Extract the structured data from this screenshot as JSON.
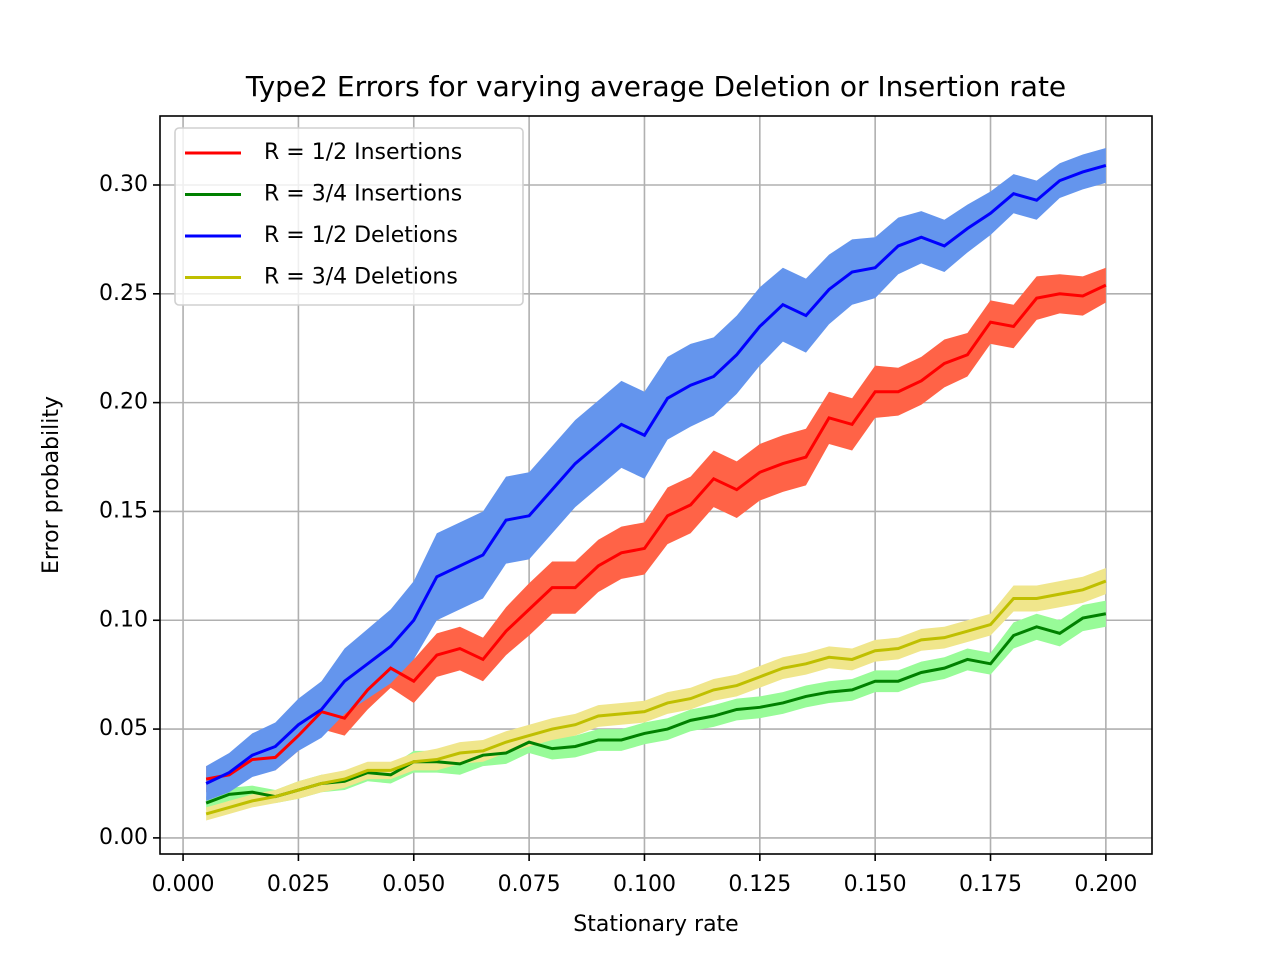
{
  "chart_data": {
    "type": "line_band",
    "title": "Type2 Errors for varying average Deletion or Insertion rate",
    "xlabel": "Stationary rate",
    "ylabel": "Error probability",
    "x": [
      0.005,
      0.01,
      0.015,
      0.02,
      0.025,
      0.03,
      0.035,
      0.04,
      0.045,
      0.05,
      0.055,
      0.06,
      0.065,
      0.07,
      0.075,
      0.08,
      0.085,
      0.09,
      0.095,
      0.1,
      0.105,
      0.11,
      0.115,
      0.12,
      0.125,
      0.13,
      0.135,
      0.14,
      0.145,
      0.15,
      0.155,
      0.16,
      0.165,
      0.17,
      0.175,
      0.18,
      0.185,
      0.19,
      0.195,
      0.2
    ],
    "series": [
      {
        "name": "R = 1/2 Insertions",
        "color": "#ff0000",
        "band_color": "#ff6347",
        "values": [
          0.027,
          0.029,
          0.036,
          0.037,
          0.047,
          0.058,
          0.055,
          0.068,
          0.078,
          0.072,
          0.084,
          0.087,
          0.082,
          0.095,
          0.105,
          0.115,
          0.115,
          0.125,
          0.131,
          0.133,
          0.148,
          0.153,
          0.165,
          0.16,
          0.168,
          0.172,
          0.175,
          0.193,
          0.19,
          0.205,
          0.205,
          0.21,
          0.218,
          0.222,
          0.237,
          0.235,
          0.248,
          0.25,
          0.249,
          0.254
        ],
        "errors": [
          0.006,
          0.005,
          0.006,
          0.006,
          0.007,
          0.008,
          0.008,
          0.009,
          0.009,
          0.01,
          0.01,
          0.01,
          0.01,
          0.011,
          0.012,
          0.012,
          0.012,
          0.012,
          0.012,
          0.012,
          0.013,
          0.013,
          0.013,
          0.013,
          0.013,
          0.013,
          0.013,
          0.012,
          0.012,
          0.012,
          0.011,
          0.011,
          0.011,
          0.01,
          0.01,
          0.01,
          0.01,
          0.009,
          0.009,
          0.008
        ]
      },
      {
        "name": "R = 3/4 Insertions",
        "color": "#008000",
        "band_color": "#98fb98",
        "values": [
          0.016,
          0.02,
          0.021,
          0.019,
          0.022,
          0.025,
          0.026,
          0.03,
          0.029,
          0.035,
          0.035,
          0.034,
          0.038,
          0.039,
          0.044,
          0.041,
          0.042,
          0.045,
          0.045,
          0.048,
          0.05,
          0.054,
          0.056,
          0.059,
          0.06,
          0.062,
          0.065,
          0.067,
          0.068,
          0.072,
          0.072,
          0.076,
          0.078,
          0.082,
          0.08,
          0.093,
          0.097,
          0.094,
          0.101,
          0.103
        ],
        "errors": [
          0.003,
          0.003,
          0.003,
          0.003,
          0.004,
          0.004,
          0.004,
          0.004,
          0.004,
          0.005,
          0.005,
          0.005,
          0.005,
          0.005,
          0.005,
          0.005,
          0.005,
          0.005,
          0.005,
          0.005,
          0.005,
          0.005,
          0.005,
          0.005,
          0.005,
          0.005,
          0.005,
          0.005,
          0.005,
          0.005,
          0.005,
          0.005,
          0.005,
          0.005,
          0.005,
          0.006,
          0.006,
          0.006,
          0.006,
          0.006
        ]
      },
      {
        "name": "R = 1/2 Deletions",
        "color": "#0000ff",
        "band_color": "#6495ed",
        "values": [
          0.025,
          0.03,
          0.038,
          0.042,
          0.052,
          0.059,
          0.072,
          0.08,
          0.088,
          0.1,
          0.12,
          0.125,
          0.13,
          0.146,
          0.148,
          0.16,
          0.172,
          0.181,
          0.19,
          0.185,
          0.202,
          0.208,
          0.212,
          0.222,
          0.235,
          0.245,
          0.24,
          0.252,
          0.26,
          0.262,
          0.272,
          0.276,
          0.272,
          0.28,
          0.287,
          0.296,
          0.293,
          0.302,
          0.306,
          0.309
        ],
        "errors": [
          0.008,
          0.009,
          0.01,
          0.011,
          0.012,
          0.013,
          0.015,
          0.016,
          0.017,
          0.018,
          0.02,
          0.02,
          0.02,
          0.02,
          0.02,
          0.02,
          0.02,
          0.02,
          0.02,
          0.02,
          0.019,
          0.019,
          0.018,
          0.018,
          0.018,
          0.017,
          0.017,
          0.016,
          0.015,
          0.014,
          0.013,
          0.012,
          0.012,
          0.011,
          0.01,
          0.009,
          0.009,
          0.008,
          0.008,
          0.008
        ]
      },
      {
        "name": "R = 3/4 Deletions",
        "color": "#bfbf00",
        "band_color": "#f0e68c",
        "values": [
          0.011,
          0.014,
          0.017,
          0.019,
          0.022,
          0.025,
          0.027,
          0.031,
          0.031,
          0.035,
          0.036,
          0.039,
          0.04,
          0.044,
          0.047,
          0.05,
          0.052,
          0.056,
          0.057,
          0.058,
          0.062,
          0.064,
          0.068,
          0.07,
          0.074,
          0.078,
          0.08,
          0.083,
          0.082,
          0.086,
          0.087,
          0.091,
          0.092,
          0.095,
          0.098,
          0.11,
          0.11,
          0.112,
          0.114,
          0.118
        ],
        "errors": [
          0.003,
          0.003,
          0.003,
          0.003,
          0.004,
          0.004,
          0.004,
          0.004,
          0.004,
          0.004,
          0.005,
          0.005,
          0.005,
          0.005,
          0.005,
          0.005,
          0.005,
          0.005,
          0.005,
          0.005,
          0.005,
          0.005,
          0.005,
          0.005,
          0.005,
          0.005,
          0.005,
          0.005,
          0.005,
          0.005,
          0.005,
          0.005,
          0.005,
          0.005,
          0.005,
          0.006,
          0.006,
          0.006,
          0.006,
          0.006
        ]
      }
    ],
    "xlim": [
      -0.005,
      0.21
    ],
    "ylim": [
      -0.0074,
      0.3317
    ],
    "xticks": [
      {
        "value": 0,
        "label": "0.000"
      },
      {
        "value": 0.025,
        "label": "0.025"
      },
      {
        "value": 0.05,
        "label": "0.050"
      },
      {
        "value": 0.075,
        "label": "0.075"
      },
      {
        "value": 0.1,
        "label": "0.100"
      },
      {
        "value": 0.125,
        "label": "0.125"
      },
      {
        "value": 0.15,
        "label": "0.150"
      },
      {
        "value": 0.175,
        "label": "0.175"
      },
      {
        "value": 0.2,
        "label": "0.200"
      }
    ],
    "yticks": [
      {
        "value": 0,
        "label": "0.00"
      },
      {
        "value": 0.05,
        "label": "0.05"
      },
      {
        "value": 0.1,
        "label": "0.10"
      },
      {
        "value": 0.15,
        "label": "0.15"
      },
      {
        "value": 0.2,
        "label": "0.20"
      },
      {
        "value": 0.25,
        "label": "0.25"
      },
      {
        "value": 0.3,
        "label": "0.30"
      }
    ],
    "grid": true,
    "legend": "upper left"
  }
}
